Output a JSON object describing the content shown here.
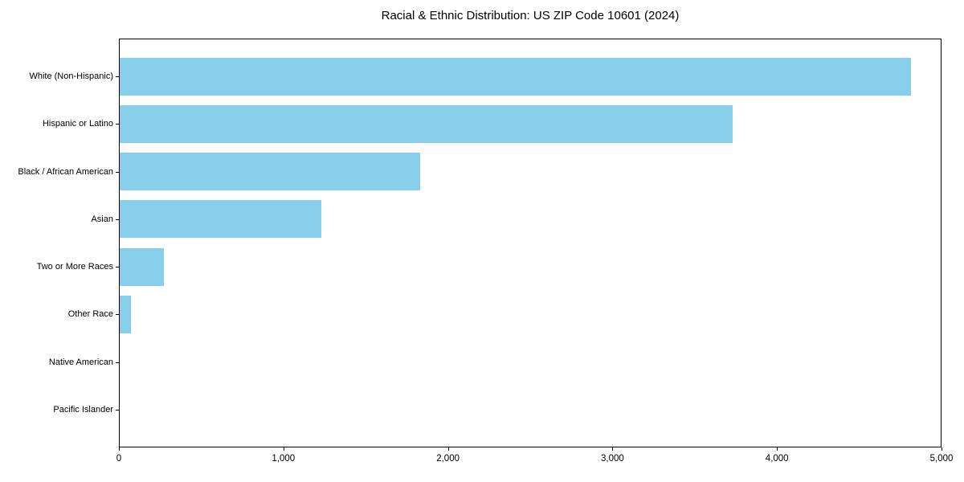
{
  "chart_data": {
    "type": "bar",
    "orientation": "horizontal",
    "title": "Racial & Ethnic Distribution: US ZIP Code 10601 (2024)",
    "xlabel": "",
    "ylabel": "",
    "categories": [
      "White (Non-Hispanic)",
      "Hispanic or Latino",
      "Black / African American",
      "Asian",
      "Two or More Races",
      "Other Race",
      "Native American",
      "Pacific Islander"
    ],
    "values": [
      4810,
      3725,
      1825,
      1225,
      270,
      70,
      0,
      0
    ],
    "xlim": [
      0,
      5000
    ],
    "x_ticks": [
      0,
      1000,
      2000,
      3000,
      4000,
      5000
    ],
    "x_tick_labels": [
      "0",
      "1,000",
      "2,000",
      "3,000",
      "4,000",
      "5,000"
    ],
    "bar_color": "#87CEEB",
    "grid": false,
    "legend": null,
    "background_color": "#ffffff",
    "spine_color": "#000000"
  }
}
